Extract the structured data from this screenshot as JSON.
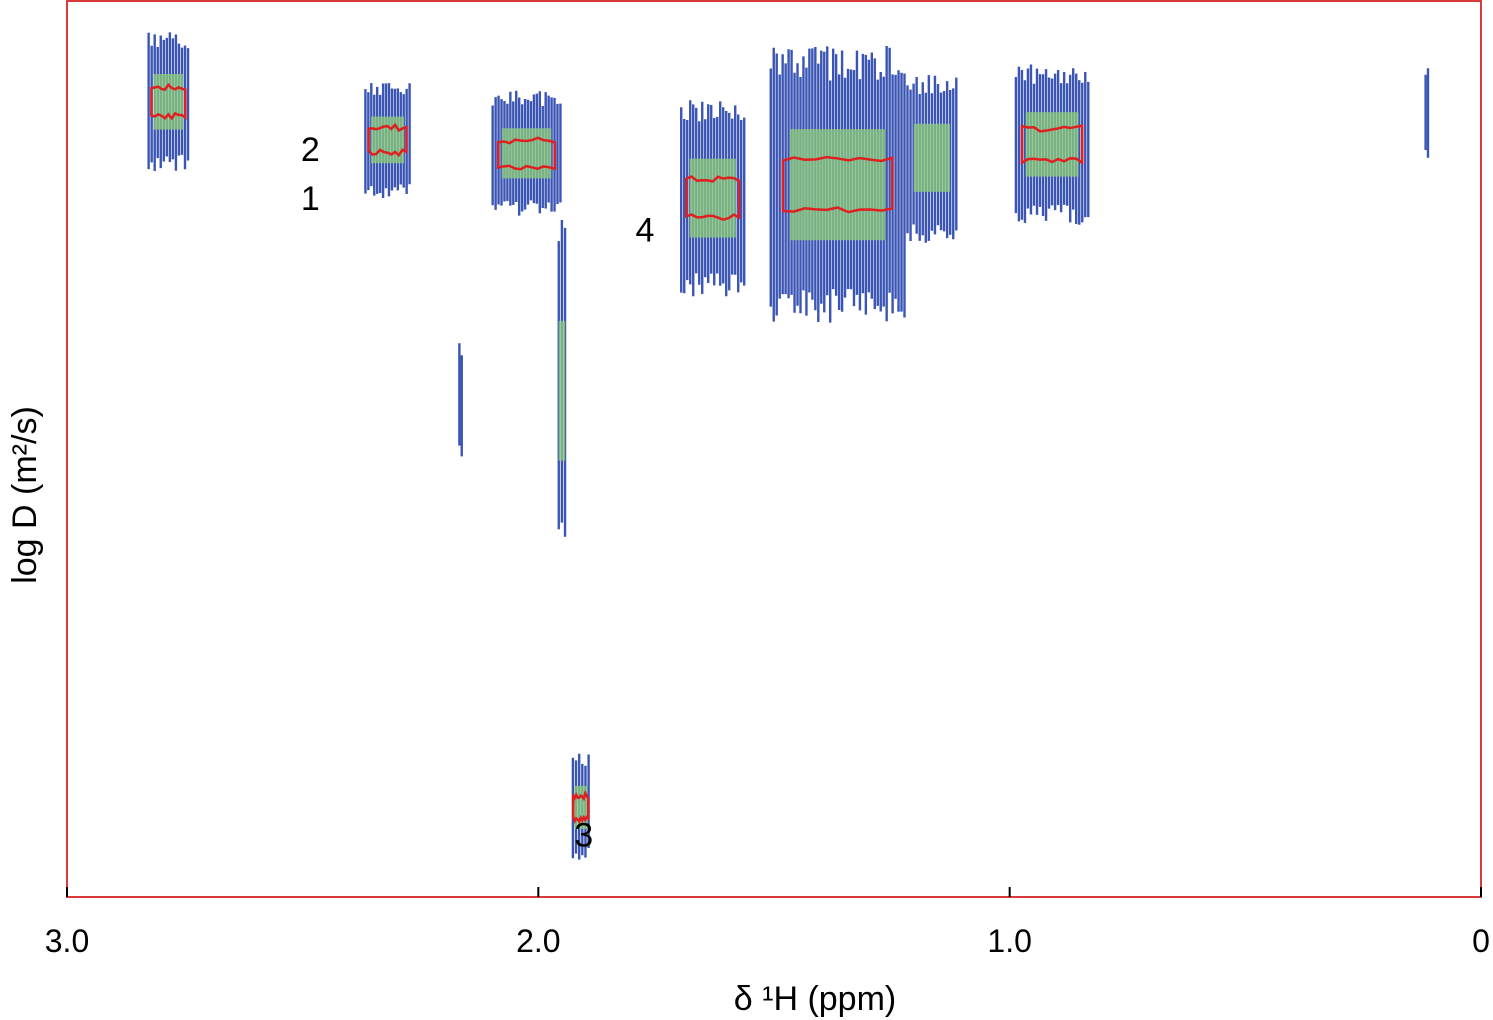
{
  "chart_data": {
    "type": "scatter",
    "subtype": "2D DOSY NMR contour plot",
    "title": "",
    "xlabel": "δ ¹H (ppm)",
    "ylabel": "log D (m²/s)",
    "x_reversed": true,
    "xlim": [
      3.0,
      0
    ],
    "x_ticks": [
      {
        "value": 3.0,
        "label": "3.0"
      },
      {
        "value": 2.0,
        "label": "2.0"
      },
      {
        "value": 1.0,
        "label": "1.0"
      },
      {
        "value": 0,
        "label": "0"
      }
    ],
    "y_range_relative": [
      0,
      1
    ],
    "y_ticks": [],
    "grid": false,
    "frame_color": "#d93a3a",
    "contour_colors": {
      "outer": "#3a55b4",
      "mid": "#8fcf7a",
      "core": "#e02020"
    },
    "peak_labels": [
      {
        "text": "1",
        "ppm": 2.42,
        "rel_y": 0.22
      },
      {
        "text": "2",
        "ppm": 2.42,
        "rel_y": 0.165
      },
      {
        "text": "3",
        "ppm": 1.84,
        "rel_y": 0.93
      },
      {
        "text": "4",
        "ppm": 1.71,
        "rel_y": 0.255
      }
    ],
    "signals": [
      {
        "ppm_from": 2.83,
        "ppm_to": 2.74,
        "rel_y_top": 0.035,
        "rel_y_bot": 0.19,
        "core": true
      },
      {
        "ppm_from": 2.37,
        "ppm_to": 2.27,
        "rel_y_top": 0.09,
        "rel_y_bot": 0.22,
        "core": true
      },
      {
        "ppm_from": 2.1,
        "ppm_to": 1.95,
        "rel_y_top": 0.1,
        "rel_y_bot": 0.24,
        "core": true
      },
      {
        "ppm_from": 1.96,
        "ppm_to": 1.94,
        "rel_y_top": 0.24,
        "rel_y_bot": 0.63,
        "core": false
      },
      {
        "ppm_from": 2.17,
        "ppm_to": 2.16,
        "rel_y_top": 0.38,
        "rel_y_bot": 0.51,
        "core": false
      },
      {
        "ppm_from": 1.93,
        "ppm_to": 1.89,
        "rel_y_top": 0.84,
        "rel_y_bot": 0.96,
        "core": true
      },
      {
        "ppm_from": 1.7,
        "ppm_to": 1.56,
        "rel_y_top": 0.11,
        "rel_y_bot": 0.33,
        "core": true
      },
      {
        "ppm_from": 1.51,
        "ppm_to": 1.22,
        "rel_y_top": 0.05,
        "rel_y_bot": 0.36,
        "core": true
      },
      {
        "ppm_from": 1.22,
        "ppm_to": 1.11,
        "rel_y_top": 0.08,
        "rel_y_bot": 0.27,
        "core": false
      },
      {
        "ppm_from": 0.99,
        "ppm_to": 0.83,
        "rel_y_top": 0.07,
        "rel_y_bot": 0.25,
        "core": true
      },
      {
        "ppm_from": 0.12,
        "ppm_to": 0.11,
        "rel_y_top": 0.07,
        "rel_y_bot": 0.18,
        "core": false
      }
    ]
  }
}
